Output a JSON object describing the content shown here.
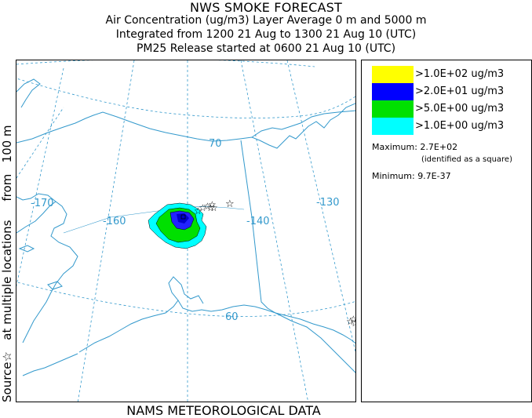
{
  "titles": {
    "line1": "NWS SMOKE FORECAST",
    "line2": "Air Concentration (ug/m3) Layer Average    0 m and  5000 m",
    "line3": "Integrated from 1200 21 Aug to 1300 21 Aug 10 (UTC)",
    "line4": "PM25 Release started at 0600 21 Aug 10 (UTC)"
  },
  "legend": {
    "items": [
      {
        "label": ">1.0E+02 ug/m3",
        "color": "#ffff00"
      },
      {
        "label": ">2.0E+01 ug/m3",
        "color": "#0000ff"
      },
      {
        "label": ">5.0E+00 ug/m3",
        "color": "#00e000"
      },
      {
        "label": ">1.0E+00 ug/m3",
        "color": "#00ffff"
      }
    ],
    "maximum_label": "Maximum:",
    "maximum_value": "2.7E+02",
    "maximum_note": "(identified as a square)",
    "minimum_label": "Minimum:",
    "minimum_value": "9.7E-37"
  },
  "side_label": {
    "source": "Source",
    "star": "☆",
    "rest": "   at multiple locations     from   100 m"
  },
  "bottom_label": "NAMS METEOROLOGICAL DATA",
  "map": {
    "graticule_labels": {
      "lat_70": "70",
      "lat_60": "60",
      "lon_m170": "-170",
      "lon_m160": "-160",
      "lon_m140": "-140",
      "lon_m130": "-130"
    },
    "colors": {
      "coast": "#3399cc",
      "grid": "#3399cc"
    }
  }
}
